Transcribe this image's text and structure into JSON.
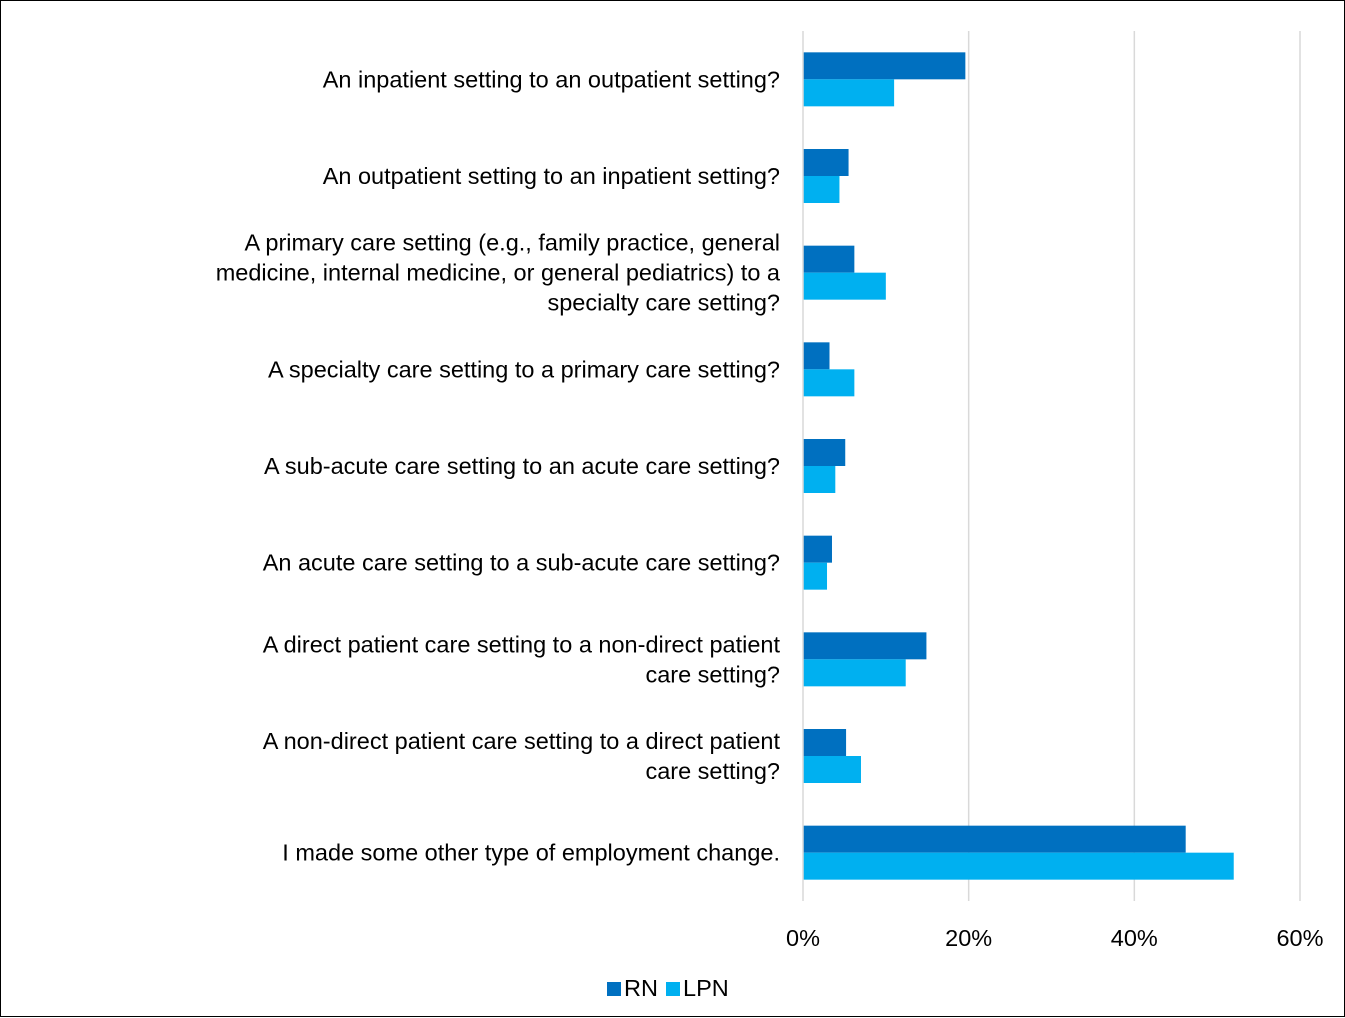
{
  "chart_data": {
    "type": "bar",
    "orientation": "horizontal",
    "categories": [
      [
        "An inpatient setting to an outpatient setting?"
      ],
      [
        "An outpatient setting to an inpatient setting?"
      ],
      [
        "A primary care setting (e.g., family practice, general",
        "medicine, internal medicine, or general pediatrics) to a",
        "specialty care setting?"
      ],
      [
        "A specialty care setting to a primary care setting?"
      ],
      [
        "A sub-acute care setting to an acute care setting?"
      ],
      [
        "An acute care setting to a sub-acute care setting?"
      ],
      [
        "A direct patient care setting to a non-direct patient",
        "care setting?"
      ],
      [
        "A non-direct patient care setting to a direct patient",
        "care setting?"
      ],
      [
        "I made some other type of employment change."
      ]
    ],
    "series": [
      {
        "name": "RN",
        "color": "#0070C0",
        "values": [
          19.6,
          5.5,
          6.2,
          3.2,
          5.1,
          3.5,
          14.9,
          5.2,
          46.2
        ]
      },
      {
        "name": "LPN",
        "color": "#00B0F0",
        "values": [
          11.0,
          4.4,
          10.0,
          6.2,
          3.9,
          2.9,
          12.4,
          7.0,
          52.0
        ]
      }
    ],
    "xlim": [
      0,
      60
    ],
    "x_ticks": [
      0,
      20,
      40,
      60
    ],
    "x_tick_labels": [
      "0%",
      "20%",
      "40%",
      "60%"
    ],
    "grid": true,
    "grid_color": "#D9D9D9",
    "legend": "bottom",
    "title": "",
    "xlabel": "",
    "ylabel": ""
  }
}
